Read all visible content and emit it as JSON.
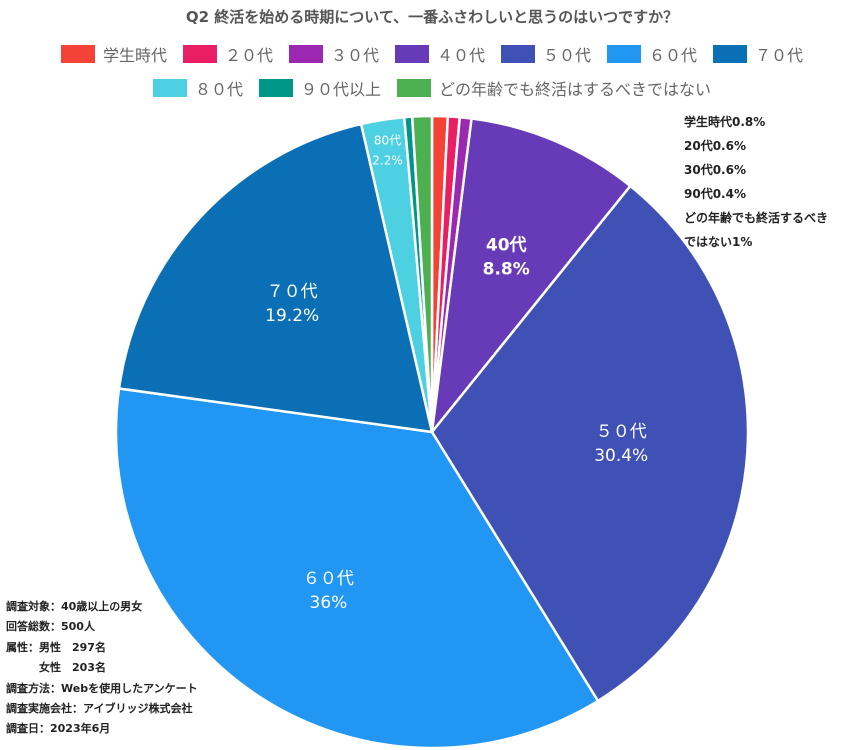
{
  "chart_data": {
    "type": "pie",
    "title": "Q2 終活を始める時期について、一番ふさわしいと思うのはいつですか？",
    "categories": [
      "学生時代",
      "２０代",
      "３０代",
      "４０代",
      "５０代",
      "６０代",
      "７０代",
      "８０代",
      "９０代以上",
      "どの年齢でも終活はするべきではない"
    ],
    "values": [
      0.8,
      0.6,
      0.6,
      8.8,
      30.4,
      36,
      19.2,
      2.2,
      0.4,
      1
    ],
    "colors": [
      "#F44336",
      "#E91E63",
      "#9C27B0",
      "#673AB7",
      "#3F51B5",
      "#2196F3",
      "#0B6FB5",
      "#4DD0E1",
      "#009688",
      "#4CAF50"
    ],
    "slice_labels": [
      null,
      null,
      null,
      {
        "name": "40代",
        "pct": "8.8%"
      },
      {
        "name": "５０代",
        "pct": "30.4%"
      },
      {
        "name": "６０代",
        "pct": "36%"
      },
      {
        "name": "７０代",
        "pct": "19.2%"
      },
      {
        "name": "80代",
        "pct": "2.2%"
      },
      null,
      null
    ],
    "legend_position": "top",
    "start": "top, clockwise"
  },
  "notes_small_slices": [
    "学生時代0.8%",
    "20代0.6%",
    "30代0.6%",
    "90代0.4%",
    "どの年齢でも終活するべき",
    "ではない1%"
  ],
  "survey_info": [
    "調査対象：40歳以上の男女",
    "回答総数：500人",
    "属性：男性　297名",
    "　　　女性　203名",
    "調査方法：Webを使用したアンケート",
    "調査実施会社：アイブリッジ株式会社",
    "調査日：2023年6月"
  ]
}
